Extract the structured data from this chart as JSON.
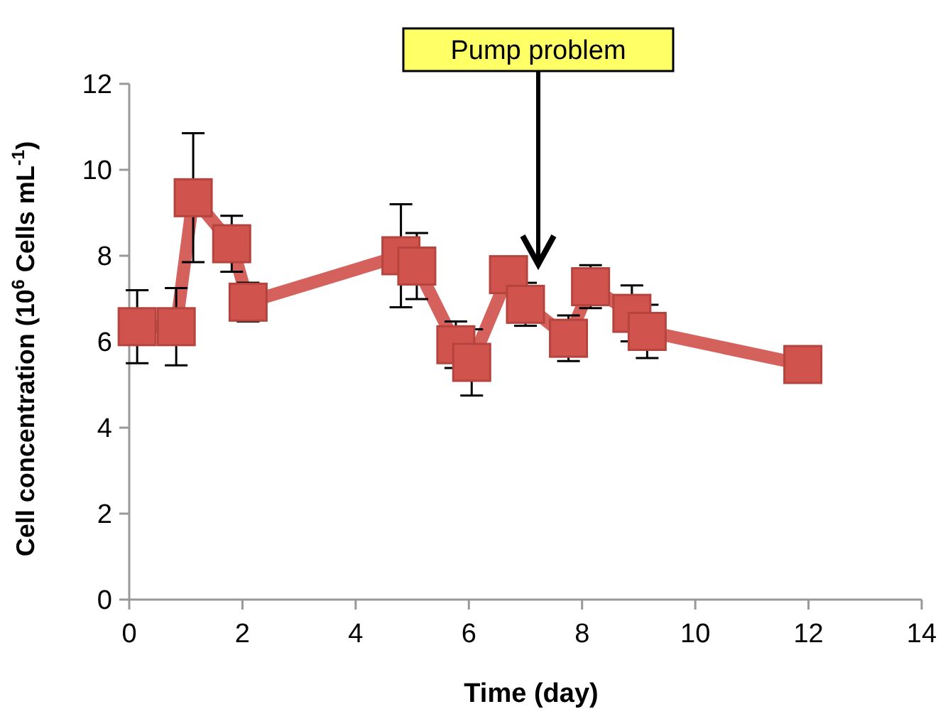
{
  "chart_data": {
    "type": "line",
    "xlabel": "Time (day)",
    "ylabel": "Cell concentration (10$^{6}$ Cells mL$^{-1}$)",
    "x": [
      0.14,
      0.83,
      1.13,
      1.81,
      2.1,
      4.8,
      5.08,
      5.77,
      6.05,
      6.7,
      7.0,
      7.76,
      8.15,
      8.88,
      9.15,
      11.9
    ],
    "series": [
      {
        "color": "#d0544d",
        "values": [
          6.35,
          6.35,
          9.35,
          8.28,
          6.92,
          8.0,
          7.76,
          5.93,
          5.52,
          7.56,
          6.87,
          6.08,
          7.28,
          6.66,
          6.24,
          5.47
        ],
        "errors": [
          0.85,
          0.9,
          1.5,
          0.65,
          0.45,
          1.2,
          0.77,
          0.54,
          0.77,
          null,
          0.5,
          0.53,
          0.5,
          0.65,
          0.62,
          null
        ]
      }
    ],
    "xlim": [
      0,
      14
    ],
    "xticks": [
      0,
      2,
      4,
      6,
      8,
      10,
      12,
      14
    ],
    "ylim": [
      0,
      12
    ],
    "yticks": [
      0,
      2,
      4,
      6,
      8,
      10,
      12
    ],
    "marker": "square",
    "line_style": "solid",
    "grid": false,
    "annotations": [
      "Pump problem"
    ]
  }
}
